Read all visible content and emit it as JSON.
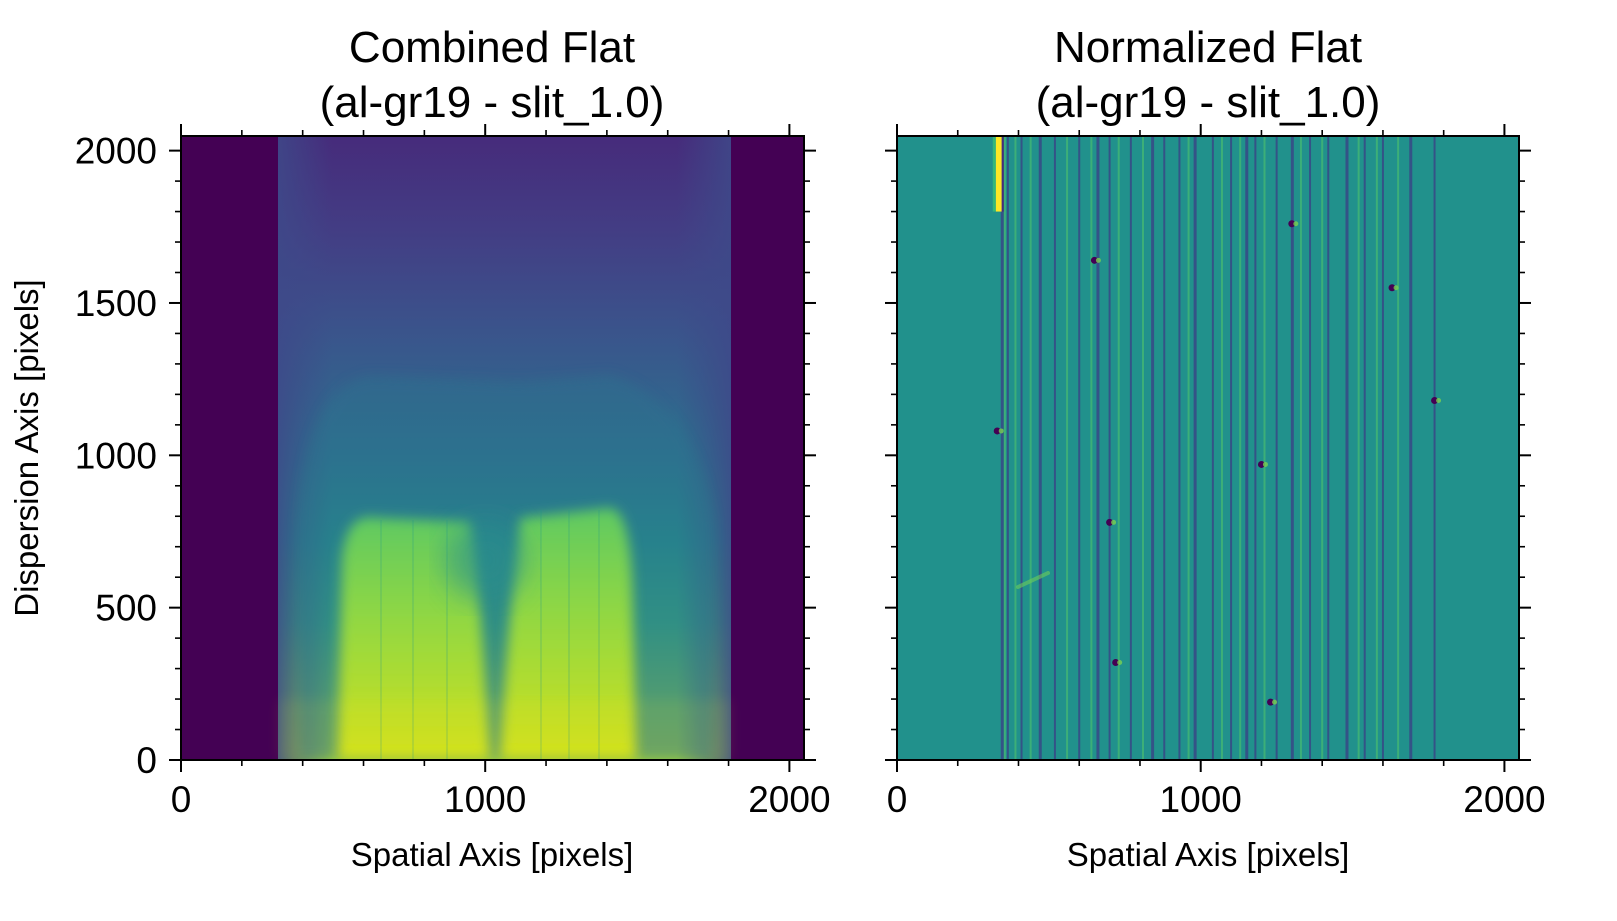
{
  "figure": {
    "panels": [
      {
        "id": "left",
        "title_line1": "Combined Flat",
        "title_line2": "(al-gr19 - slit_1.0)",
        "xlabel": "Spatial Axis [pixels]",
        "ylabel": "Dispersion Axis [pixels]",
        "show_y_ticklabels": true
      },
      {
        "id": "right",
        "title_line1": "Normalized Flat",
        "title_line2": "(al-gr19 - slit_1.0)",
        "xlabel": "Spatial Axis [pixels]",
        "ylabel": "",
        "show_y_ticklabels": false
      }
    ]
  },
  "chart_data": [
    {
      "type": "heatmap",
      "title": "Combined Flat (al-gr19 - slit_1.0)",
      "xlabel": "Spatial Axis [pixels]",
      "ylabel": "Dispersion Axis [pixels]",
      "colormap": "viridis",
      "xlim": [
        0,
        2048
      ],
      "ylim": [
        0,
        2048
      ],
      "xticks": [
        0,
        1000,
        2000
      ],
      "xtick_labels": [
        "0",
        "1000",
        "2000"
      ],
      "yticks": [
        0,
        500,
        1000,
        1500,
        2000
      ],
      "ytick_labels": [
        "0",
        "500",
        "1000",
        "1500",
        "2000"
      ],
      "illuminated_x_range": [
        320,
        1810
      ],
      "features": {
        "bright_lobes_x_centers": [
          690,
          1390
        ],
        "bright_lobe_top_y": 800,
        "central_dip_x": 1000,
        "central_dip_y": 620,
        "plateau_top_y": 1270,
        "plateau_x_range": [
          540,
          1500
        ]
      }
    },
    {
      "type": "heatmap",
      "title": "Normalized Flat (al-gr19 - slit_1.0)",
      "xlabel": "Spatial Axis [pixels]",
      "ylabel": "",
      "colormap": "viridis",
      "xlim": [
        0,
        2048
      ],
      "ylim": [
        0,
        2048
      ],
      "xticks": [
        0,
        1000,
        2000
      ],
      "xtick_labels": [
        "0",
        "1000",
        "2000"
      ],
      "yticks": [
        0,
        500,
        1000,
        1500,
        2000
      ],
      "illuminated_x_range": [
        320,
        1810
      ],
      "bright_feature": {
        "x": 335,
        "y_range": [
          1800,
          2048
        ]
      },
      "dark_vertical_lines_x": [
        345,
        365,
        410,
        470,
        520,
        600,
        660,
        700,
        770,
        840,
        880,
        930,
        980,
        1040,
        1100,
        1150,
        1180,
        1250,
        1300,
        1360,
        1420,
        1480,
        1540,
        1600,
        1690,
        1770
      ],
      "bright_vertical_lines_x": [
        355,
        390,
        440,
        560,
        640,
        730,
        810,
        960,
        1070,
        1130,
        1210,
        1330,
        1400,
        1520,
        1580,
        1650
      ],
      "spots": [
        {
          "x": 650,
          "y": 1640
        },
        {
          "x": 1300,
          "y": 1760
        },
        {
          "x": 1630,
          "y": 1550
        },
        {
          "x": 700,
          "y": 780
        },
        {
          "x": 720,
          "y": 320
        },
        {
          "x": 1200,
          "y": 970
        },
        {
          "x": 1230,
          "y": 190
        },
        {
          "x": 1770,
          "y": 1180
        },
        {
          "x": 330,
          "y": 1080
        }
      ]
    }
  ]
}
